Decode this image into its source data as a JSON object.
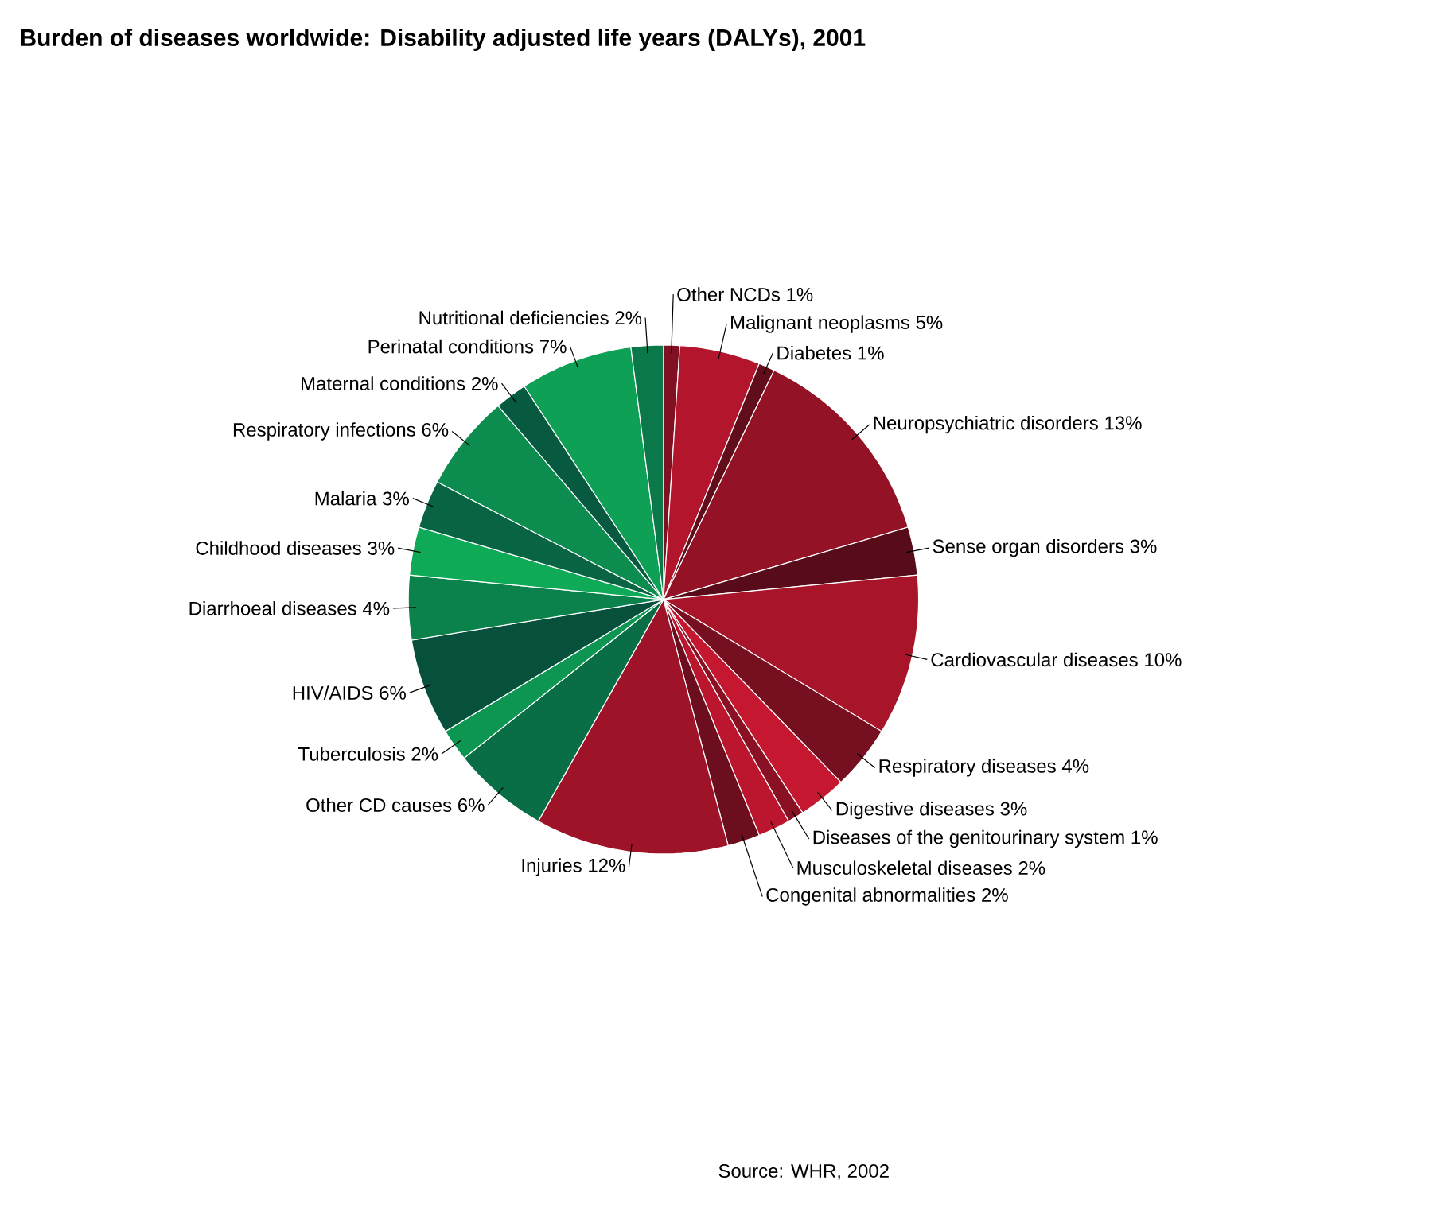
{
  "chart_data": {
    "type": "pie",
    "title": "Burden of diseases worldwide: Disability adjusted life years (DALYs), 2001",
    "categories": [
      "Other NCDs",
      "Malignant neoplasms",
      "Diabetes",
      "Neuropsychiatric disorders",
      "Sense organ disorders",
      "Cardiovascular diseases",
      "Respiratory diseases",
      "Digestive diseases",
      "Diseases of the genitourinary system",
      "Musculoskeletal diseases",
      "Congenital abnormalities",
      "Injuries",
      "Other CD causes",
      "Tuberculosis",
      "HIV/AIDS",
      "Diarrhoeal diseases",
      "Childhood diseases",
      "Malaria",
      "Respiratory infections",
      "Maternal conditions",
      "Perinatal conditions",
      "Nutritional deficiencies"
    ],
    "values": [
      1,
      5,
      1,
      13,
      3,
      10,
      4,
      3,
      1,
      2,
      2,
      12,
      6,
      2,
      6,
      4,
      3,
      3,
      6,
      2,
      7,
      2
    ],
    "value_labels": [
      "1%",
      "5%",
      "1%",
      "13%",
      "3%",
      "10%",
      "4%",
      "3%",
      "1%",
      "2%",
      "2%",
      "12%",
      "6%",
      "2%",
      "6%",
      "4%",
      "3%",
      "3%",
      "6%",
      "2%",
      "7%",
      "2%"
    ],
    "colors": [
      "#801022",
      "#b2152c",
      "#620d1c",
      "#941226",
      "#580c1a",
      "#a8142a",
      "#760f20",
      "#c61730",
      "#8a1124",
      "#bc162e",
      "#6c0e1e",
      "#9e1328",
      "#096e45",
      "#0d9651",
      "#06503c",
      "#0b824b",
      "#0faa57",
      "#086442",
      "#0c8c4e",
      "#075a3f",
      "#0ea054",
      "#0a7848"
    ],
    "annotations": [
      "Source: WHR, 2002"
    ]
  }
}
